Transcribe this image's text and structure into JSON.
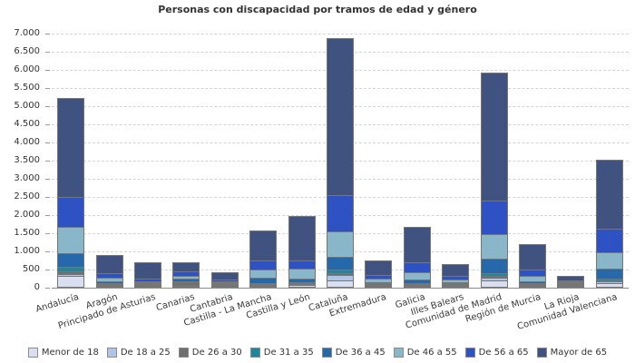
{
  "title": "Personas con discapacidad por tramos de edad y género",
  "colors": {
    "grid": "#d4d4d4",
    "axis": "#8c8c8c",
    "bar_border": "#767676",
    "text": "#333333"
  },
  "chart_data": {
    "type": "bar",
    "stacked": true,
    "title": "Personas con discapacidad por tramos de edad y género",
    "xlabel": "",
    "ylabel": "",
    "ylim": [
      0,
      7000
    ],
    "ytick_step": 500,
    "ytick_labels": [
      "0",
      "500",
      "1.000",
      "1.500",
      "2.000",
      "2.500",
      "3.000",
      "3.500",
      "4.000",
      "4.500",
      "5.000",
      "5.500",
      "6.000",
      "6.500",
      "7.000"
    ],
    "grid": "horizontal-dashed",
    "legend_position": "bottom",
    "categories": [
      "Andalucía",
      "Aragón",
      "Principado de Asturias",
      "Canarias",
      "Cantabria",
      "Castilla - La Mancha",
      "Castilla y León",
      "Cataluña",
      "Extremadura",
      "Galicia",
      "Illes Balears",
      "Comunidad de Madrid",
      "Región de Murcia",
      "La Rioja",
      "Comunidad Valenciana"
    ],
    "series": [
      {
        "name": "Menor de 18",
        "color": "#d9def1",
        "values": [
          330,
          30,
          20,
          40,
          20,
          60,
          70,
          210,
          25,
          45,
          25,
          205,
          45,
          10,
          130
        ]
      },
      {
        "name": "De 18 a 25",
        "color": "#aec5e8",
        "values": [
          80,
          20,
          15,
          15,
          10,
          25,
          30,
          160,
          15,
          25,
          15,
          100,
          20,
          5,
          60
        ]
      },
      {
        "name": "De 26 a 30",
        "color": "#6f6f6f",
        "values": [
          80,
          60,
          30,
          110,
          35,
          40,
          55,
          70,
          25,
          45,
          25,
          80,
          40,
          35,
          45
        ]
      },
      {
        "name": "De 31 a 35",
        "color": "#1d87a0",
        "values": [
          170,
          30,
          20,
          25,
          15,
          35,
          30,
          125,
          20,
          30,
          20,
          85,
          25,
          10,
          85
        ]
      },
      {
        "name": "De 36 a 45",
        "color": "#2569ab",
        "values": [
          380,
          70,
          40,
          85,
          30,
          165,
          125,
          390,
          50,
          125,
          40,
          420,
          65,
          15,
          290
        ]
      },
      {
        "name": "De 46 a 55",
        "color": "#8ab6c9",
        "values": [
          770,
          130,
          60,
          115,
          45,
          250,
          290,
          710,
          125,
          225,
          110,
          710,
          190,
          25,
          475
        ]
      },
      {
        "name": "De 56 a 65",
        "color": "#2e52c3",
        "values": [
          850,
          130,
          85,
          150,
          65,
          285,
          250,
          1040,
          125,
          290,
          125,
          960,
          200,
          30,
          690
        ]
      },
      {
        "name": "Mayor de 65",
        "color": "#40527f",
        "values": [
          2740,
          530,
          480,
          260,
          230,
          840,
          1250,
          4345,
          415,
          1015,
          340,
          3540,
          715,
          150,
          1925
        ]
      }
    ]
  }
}
